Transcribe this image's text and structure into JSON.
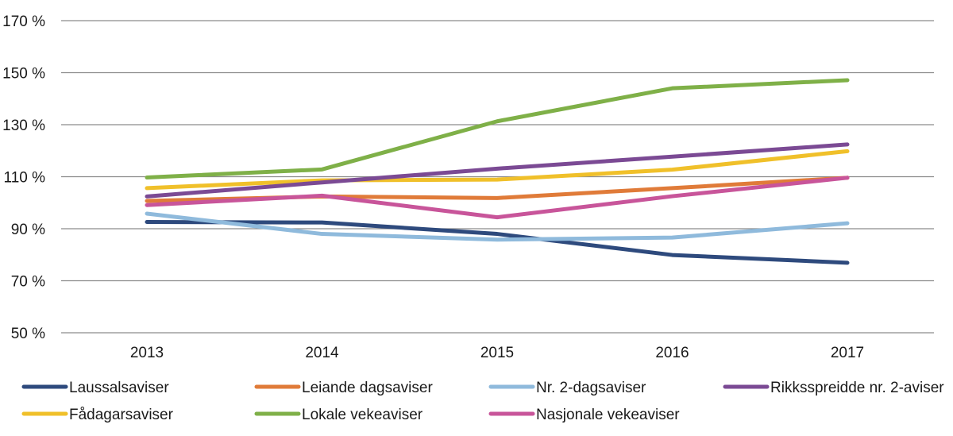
{
  "chart_data": {
    "type": "line",
    "title": "",
    "xlabel": "",
    "ylabel": "",
    "x": [
      "2013",
      "2014",
      "2015",
      "2016",
      "2017"
    ],
    "ylim": [
      50,
      170
    ],
    "yticks": [
      50,
      70,
      90,
      110,
      130,
      150,
      170
    ],
    "ytick_labels": [
      "50 %",
      "70 %",
      "90 %",
      "110 %",
      "130 %",
      "150 %",
      "170 %"
    ],
    "grid": "horizontal",
    "legend_position": "bottom",
    "series": [
      {
        "name": "Laussalsaviser",
        "color": "#2e4a7d",
        "values": [
          92.6,
          92.4,
          88.0,
          79.9,
          76.9
        ]
      },
      {
        "name": "Leiande dagsaviser",
        "color": "#e07b39",
        "values": [
          100.7,
          102.4,
          101.8,
          105.6,
          109.6
        ]
      },
      {
        "name": "Nr. 2-dagsaviser",
        "color": "#8fbadc",
        "values": [
          95.8,
          88.0,
          85.8,
          86.6,
          92.1
        ]
      },
      {
        "name": "Rikksspreidde nr. 2-aviser",
        "color": "#7b4a94",
        "values": [
          102.4,
          107.8,
          113.1,
          117.7,
          122.4
        ]
      },
      {
        "name": "Fådagarsaviser",
        "color": "#f0c02a",
        "values": [
          105.6,
          108.6,
          108.9,
          112.7,
          119.8
        ]
      },
      {
        "name": "Lokale vekeaviser",
        "color": "#7fb048",
        "values": [
          109.7,
          112.8,
          131.3,
          144.0,
          147.1
        ]
      },
      {
        "name": "Nasjonale vekeaviser",
        "color": "#c8559a",
        "values": [
          99.1,
          102.7,
          94.4,
          102.5,
          109.6
        ]
      }
    ]
  }
}
